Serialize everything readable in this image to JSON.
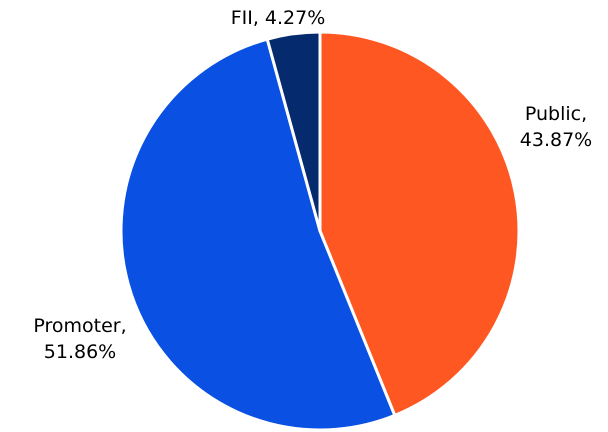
{
  "chart_data": {
    "type": "pie",
    "categories": [
      "Public",
      "Promoter",
      "FII"
    ],
    "values": [
      43.87,
      51.86,
      4.27
    ],
    "value_labels": [
      "Public, 43.87%",
      "Promoter, 51.86%",
      "FII, 4.27%"
    ],
    "colors": [
      "#ff5722",
      "#0a50e3",
      "#062a6e"
    ]
  }
}
